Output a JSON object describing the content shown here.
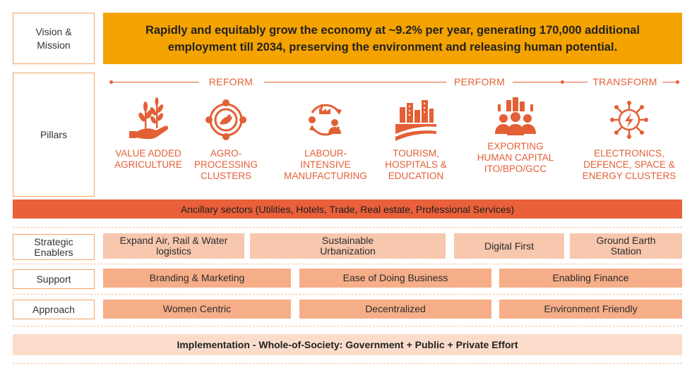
{
  "rows": {
    "vision_label": "Vision &\nMission",
    "pillars_label": "Pillars",
    "enablers_label": "Strategic\nEnablers",
    "support_label": "Support",
    "approach_label": "Approach"
  },
  "vision": {
    "text": "Rapidly and equitably grow the economy at ~9.2% per year, generating 170,000 additional employment till 2034, preserving the environment and releasing human potential."
  },
  "phases": [
    "REFORM",
    "PERFORM",
    "TRANSFORM"
  ],
  "pillars": [
    {
      "label": "VALUE ADDED\nAGRICULTURE",
      "icon": "hand-plant-icon"
    },
    {
      "label": "AGRO-\nPROCESSING\nCLUSTERS",
      "icon": "agro-cycle-icon"
    },
    {
      "label": "LABOUR-\nINTENSIVE\nMANUFACTURING",
      "icon": "factory-cycle-icon"
    },
    {
      "label": "TOURISM,\nHOSPITALS &\nEDUCATION",
      "icon": "city-field-icon"
    },
    {
      "label": "EXPORTING\nHUMAN CAPITAL\nITO/BPO/GCC",
      "icon": "people-city-icon"
    },
    {
      "label": "ELECTRONICS,\nDEFENCE, SPACE &\nENERGY CLUSTERS",
      "icon": "circuit-bolt-icon"
    }
  ],
  "ancillary": "Ancillary sectors (Utilities, Hotels, Trade, Real estate, Professional Services)",
  "enablers": [
    "Expand Air, Rail & Water\nlogistics",
    "Sustainable\nUrbanization",
    "Digital First",
    "Ground Earth\nStation"
  ],
  "support": [
    "Branding & Marketing",
    "Ease of Doing Business",
    "Enabling Finance"
  ],
  "approach": [
    "Women Centric",
    "Decentralized",
    "Environment Friendly"
  ],
  "implementation": "Implementation - Whole-of-Society: Government + Public + Private Effort",
  "colors": {
    "accent": "#e35f36",
    "vision_bg": "#f5a300",
    "ancillary_bg": "#e9603a",
    "cell_light": "#f7c7ae",
    "cell_mid": "#f6ae88",
    "impl_bg": "#fbdccb"
  }
}
